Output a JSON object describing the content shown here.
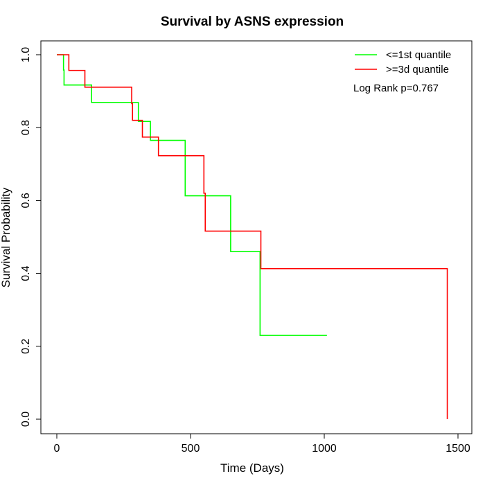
{
  "chart_data": {
    "type": "line",
    "title": "Survival by ASNS expression",
    "xlabel": "Time (Days)",
    "ylabel": "Survival Probability",
    "xlim": [
      0,
      1500
    ],
    "ylim": [
      0,
      1.0
    ],
    "x_ticks": [
      0,
      500,
      1000,
      1500
    ],
    "x_tick_labels": [
      "0",
      "500",
      "1000",
      "1500"
    ],
    "y_ticks": [
      0,
      0.2,
      0.4,
      0.6,
      0.8,
      1.0
    ],
    "y_tick_labels": [
      "0.0",
      "0.2",
      "0.4",
      "0.6",
      "0.8",
      "1.0"
    ],
    "grid": false,
    "legend_position": "top-right",
    "annotation": "Log Rank p=0.767",
    "series": [
      {
        "name": "<=1st quantile",
        "color": "#00ff00",
        "steps": [
          [
            0,
            1.0
          ],
          [
            25,
            0.958
          ],
          [
            27,
            0.917
          ],
          [
            130,
            0.869
          ],
          [
            305,
            0.817
          ],
          [
            350,
            0.765
          ],
          [
            480,
            0.613
          ],
          [
            650,
            0.46
          ],
          [
            760,
            0.23
          ],
          [
            1010,
            0.23
          ]
        ]
      },
      {
        "name": ">=3d quantile",
        "color": "#ff0000",
        "steps": [
          [
            0,
            1.0
          ],
          [
            45,
            0.957
          ],
          [
            105,
            0.911
          ],
          [
            280,
            0.866
          ],
          [
            283,
            0.82
          ],
          [
            320,
            0.774
          ],
          [
            380,
            0.723
          ],
          [
            550,
            0.62
          ],
          [
            555,
            0.516
          ],
          [
            763,
            0.413
          ],
          [
            1460,
            0.413
          ],
          [
            1460,
            0.0
          ]
        ]
      }
    ]
  }
}
